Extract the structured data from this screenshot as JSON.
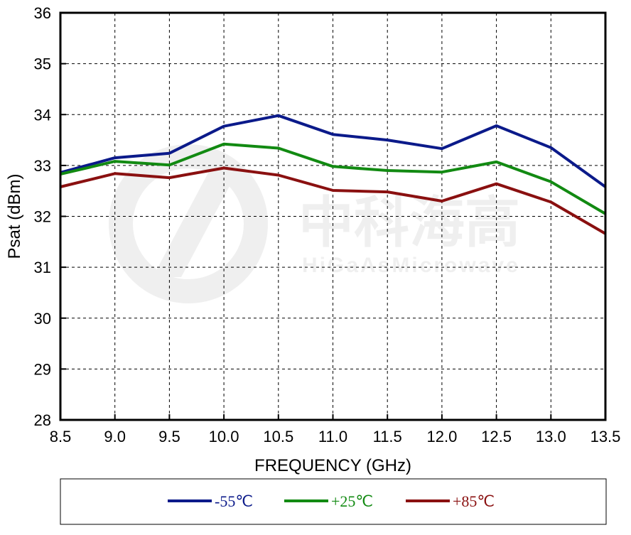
{
  "chart_data": {
    "type": "line",
    "title": "",
    "xlabel": "FREQUENCY (GHz)",
    "ylabel": "Psat (dBm)",
    "xlim": [
      8.5,
      13.5
    ],
    "ylim": [
      28,
      36
    ],
    "x_ticks": [
      "8.5",
      "9.0",
      "9.5",
      "10.0",
      "10.5",
      "11.0",
      "11.5",
      "12.0",
      "12.5",
      "13.0",
      "13.5"
    ],
    "y_ticks": [
      "28",
      "29",
      "30",
      "31",
      "32",
      "33",
      "34",
      "35",
      "36"
    ],
    "grid": true,
    "legend_position": "bottom",
    "x": [
      8.5,
      9.0,
      9.5,
      10.0,
      10.5,
      11.0,
      11.5,
      12.0,
      12.5,
      13.0,
      13.5
    ],
    "series": [
      {
        "name": "-55℃",
        "color": "#0b1a8a",
        "values": [
          32.86,
          33.15,
          33.24,
          33.77,
          33.98,
          33.61,
          33.5,
          33.33,
          33.78,
          33.35,
          32.58
        ]
      },
      {
        "name": "+25℃",
        "color": "#128a12",
        "values": [
          32.83,
          33.08,
          33.01,
          33.42,
          33.34,
          32.98,
          32.9,
          32.87,
          33.07,
          32.68,
          32.05
        ]
      },
      {
        "name": "+85℃",
        "color": "#8a1010",
        "values": [
          32.58,
          32.84,
          32.76,
          32.95,
          32.81,
          32.51,
          32.48,
          32.3,
          32.64,
          32.28,
          31.66
        ]
      }
    ]
  },
  "watermark": {
    "brand_cn": "中科海高",
    "brand_en": "HiGaAsMicrowave"
  }
}
